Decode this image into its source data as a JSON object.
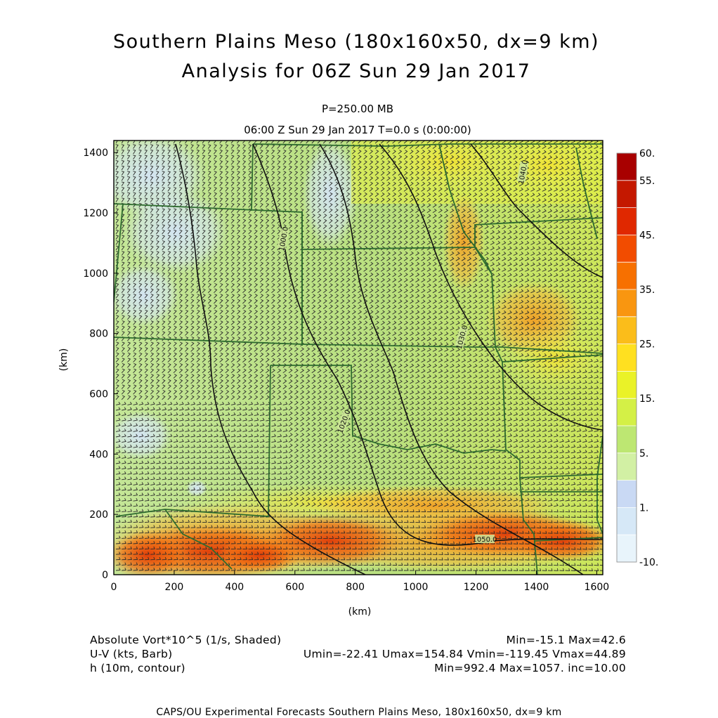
{
  "header": {
    "title_line1": "Southern Plains Meso (180x160x50, dx=9 km)",
    "title_line2": "Analysis for 06Z Sun 29 Jan 2017",
    "pressure_level": "P=250.00 MB",
    "valid_time": "06:00 Z Sun 29 Jan 2017    T=0.0 s (0:00:00)"
  },
  "legend": {
    "field1": "Absolute Vort*10^5 (1/s, Shaded)",
    "field1_stats": "Min=-15.1 Max=42.6",
    "field2": "U-V (kts, Barb)",
    "field2_stats": "Umin=-22.41 Umax=154.84 Vmin=-119.45 Vmax=44.89",
    "field3": "h (10m, contour)",
    "field3_stats": "Min=992.4 Max=1057. inc=10.00"
  },
  "footer": "CAPS/OU Experimental Forecasts  Southern Plains Meso, 180x160x50, dx=9 km",
  "colors": {
    "low_vort": "#d9e8f5",
    "mid_vort": "#b8e088",
    "high_vort": "#e64a0c",
    "barb": "#2a2a2a",
    "border": "#2e6b2e",
    "contour": "#111111"
  },
  "chart_data": {
    "type": "heatmap",
    "xlabel": "(km)",
    "ylabel": "(km)",
    "xlim": [
      0,
      1620
    ],
    "ylim": [
      0,
      1440
    ],
    "x_ticks": [
      "0",
      "200",
      "400",
      "600",
      "800",
      "1000",
      "1200",
      "1400",
      "1600"
    ],
    "y_ticks": [
      "0",
      "200",
      "400",
      "600",
      "800",
      "1000",
      "1200",
      "1400"
    ],
    "colorbar": {
      "labels": [
        "60.",
        "55.",
        "45.",
        "35.",
        "25.",
        "15.",
        "5.",
        "1.",
        "-10."
      ],
      "colors": [
        "#a80000",
        "#c41800",
        "#e02800",
        "#f24c00",
        "#f77000",
        "#f99610",
        "#fbbd1a",
        "#ffe020",
        "#eaf228",
        "#d4f046",
        "#bde772",
        "#d2f0a4",
        "#c9d9f4",
        "#d6e8f7",
        "#e8f4fb"
      ]
    },
    "contour_labels": [
      "1000.0",
      "1020.0",
      "1030.0",
      "1040.0",
      "1050.0"
    ],
    "field_range": {
      "min": -15.1,
      "max": 42.6
    }
  }
}
